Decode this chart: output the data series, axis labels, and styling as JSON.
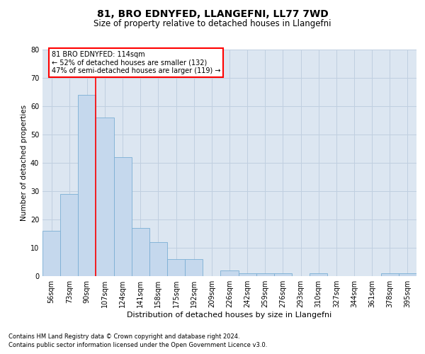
{
  "title": "81, BRO EDNYFED, LLANGEFNI, LL77 7WD",
  "subtitle": "Size of property relative to detached houses in Llangefni",
  "xlabel": "Distribution of detached houses by size in Llangefni",
  "ylabel": "Number of detached properties",
  "footnote1": "Contains HM Land Registry data © Crown copyright and database right 2024.",
  "footnote2": "Contains public sector information licensed under the Open Government Licence v3.0.",
  "categories": [
    "56sqm",
    "73sqm",
    "90sqm",
    "107sqm",
    "124sqm",
    "141sqm",
    "158sqm",
    "175sqm",
    "192sqm",
    "209sqm",
    "226sqm",
    "242sqm",
    "259sqm",
    "276sqm",
    "293sqm",
    "310sqm",
    "327sqm",
    "344sqm",
    "361sqm",
    "378sqm",
    "395sqm"
  ],
  "values": [
    16,
    29,
    64,
    56,
    42,
    17,
    12,
    6,
    6,
    0,
    2,
    1,
    1,
    1,
    0,
    1,
    0,
    0,
    0,
    1,
    1
  ],
  "bar_color": "#c5d8ed",
  "bar_edge_color": "#7bafd4",
  "grid_color": "#c0cfe0",
  "bg_color": "#dce6f1",
  "annotation_line1": "81 BRO EDNYFED: 114sqm",
  "annotation_line2": "← 52% of detached houses are smaller (132)",
  "annotation_line3": "47% of semi-detached houses are larger (119) →",
  "annotation_box_color": "white",
  "annotation_box_edge_color": "red",
  "vline_color": "red",
  "vline_x": 2.5,
  "ylim": [
    0,
    80
  ],
  "yticks": [
    0,
    10,
    20,
    30,
    40,
    50,
    60,
    70,
    80
  ],
  "title_fontsize": 10,
  "subtitle_fontsize": 8.5,
  "ylabel_fontsize": 7.5,
  "xlabel_fontsize": 8,
  "tick_fontsize": 7,
  "annot_fontsize": 7,
  "footnote_fontsize": 6
}
